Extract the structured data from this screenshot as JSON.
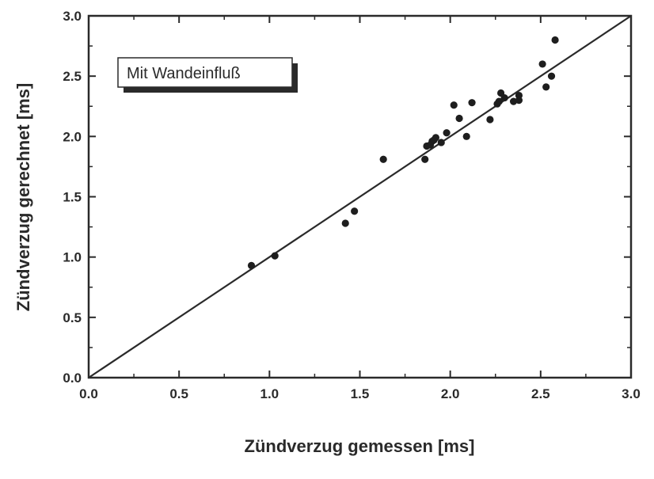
{
  "chart_data": {
    "type": "scatter",
    "title": "",
    "xlabel": "Zündverzug gemessen [ms]",
    "ylabel": "Zündverzug gerechnet [ms]",
    "xlim": [
      0.0,
      3.0
    ],
    "ylim": [
      0.0,
      3.0
    ],
    "xticks": [
      "0.0",
      "0.5",
      "1.0",
      "1.5",
      "2.0",
      "2.5",
      "3.0"
    ],
    "yticks": [
      "0.0",
      "0.5",
      "1.0",
      "1.5",
      "2.0",
      "2.5",
      "3.0"
    ],
    "grid": false,
    "annotation": "Mit Wandeinfluß",
    "annotation_position": "top-left",
    "reference_line": {
      "from": [
        0.0,
        0.0
      ],
      "to": [
        3.0,
        3.0
      ]
    },
    "marker_color": "#1e1e1e",
    "line_color": "#2a2a2a",
    "series": [
      {
        "x": [
          0.9,
          1.03,
          1.42,
          1.47,
          1.63,
          1.86,
          1.87,
          1.89,
          1.9,
          1.91,
          1.92,
          1.95,
          1.98,
          2.02,
          2.05,
          2.09,
          2.12,
          2.22,
          2.26,
          2.27,
          2.28,
          2.3,
          2.35,
          2.38,
          2.38,
          2.51,
          2.53,
          2.56,
          2.58
        ],
        "y": [
          0.93,
          1.01,
          1.28,
          1.38,
          1.81,
          1.81,
          1.92,
          1.93,
          1.96,
          1.97,
          1.99,
          1.95,
          2.03,
          2.26,
          2.15,
          2.0,
          2.28,
          2.14,
          2.27,
          2.29,
          2.36,
          2.32,
          2.29,
          2.3,
          2.34,
          2.6,
          2.41,
          2.5,
          2.8
        ]
      }
    ]
  }
}
